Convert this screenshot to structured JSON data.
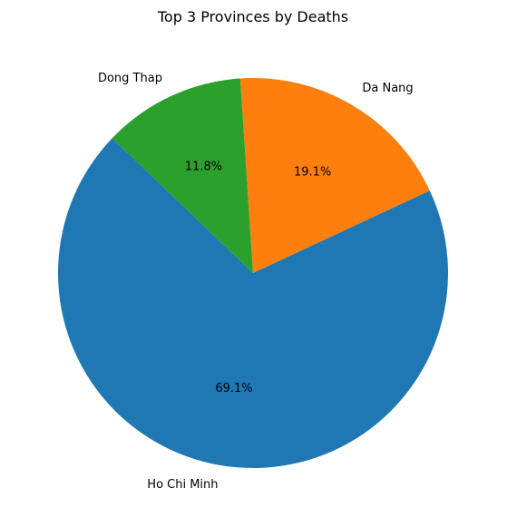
{
  "chart_data": {
    "type": "pie",
    "title": "Top 3 Provinces by Deaths",
    "slices": [
      {
        "label": "Ho Chi Minh",
        "percent": 69.1,
        "percent_label": "69.1%",
        "color": "#1f77b4"
      },
      {
        "label": "Da Nang",
        "percent": 19.1,
        "percent_label": "19.1%",
        "color": "#ff7f0e"
      },
      {
        "label": "Dong Thap",
        "percent": 11.8,
        "percent_label": "11.8%",
        "color": "#2ca02c"
      }
    ]
  }
}
